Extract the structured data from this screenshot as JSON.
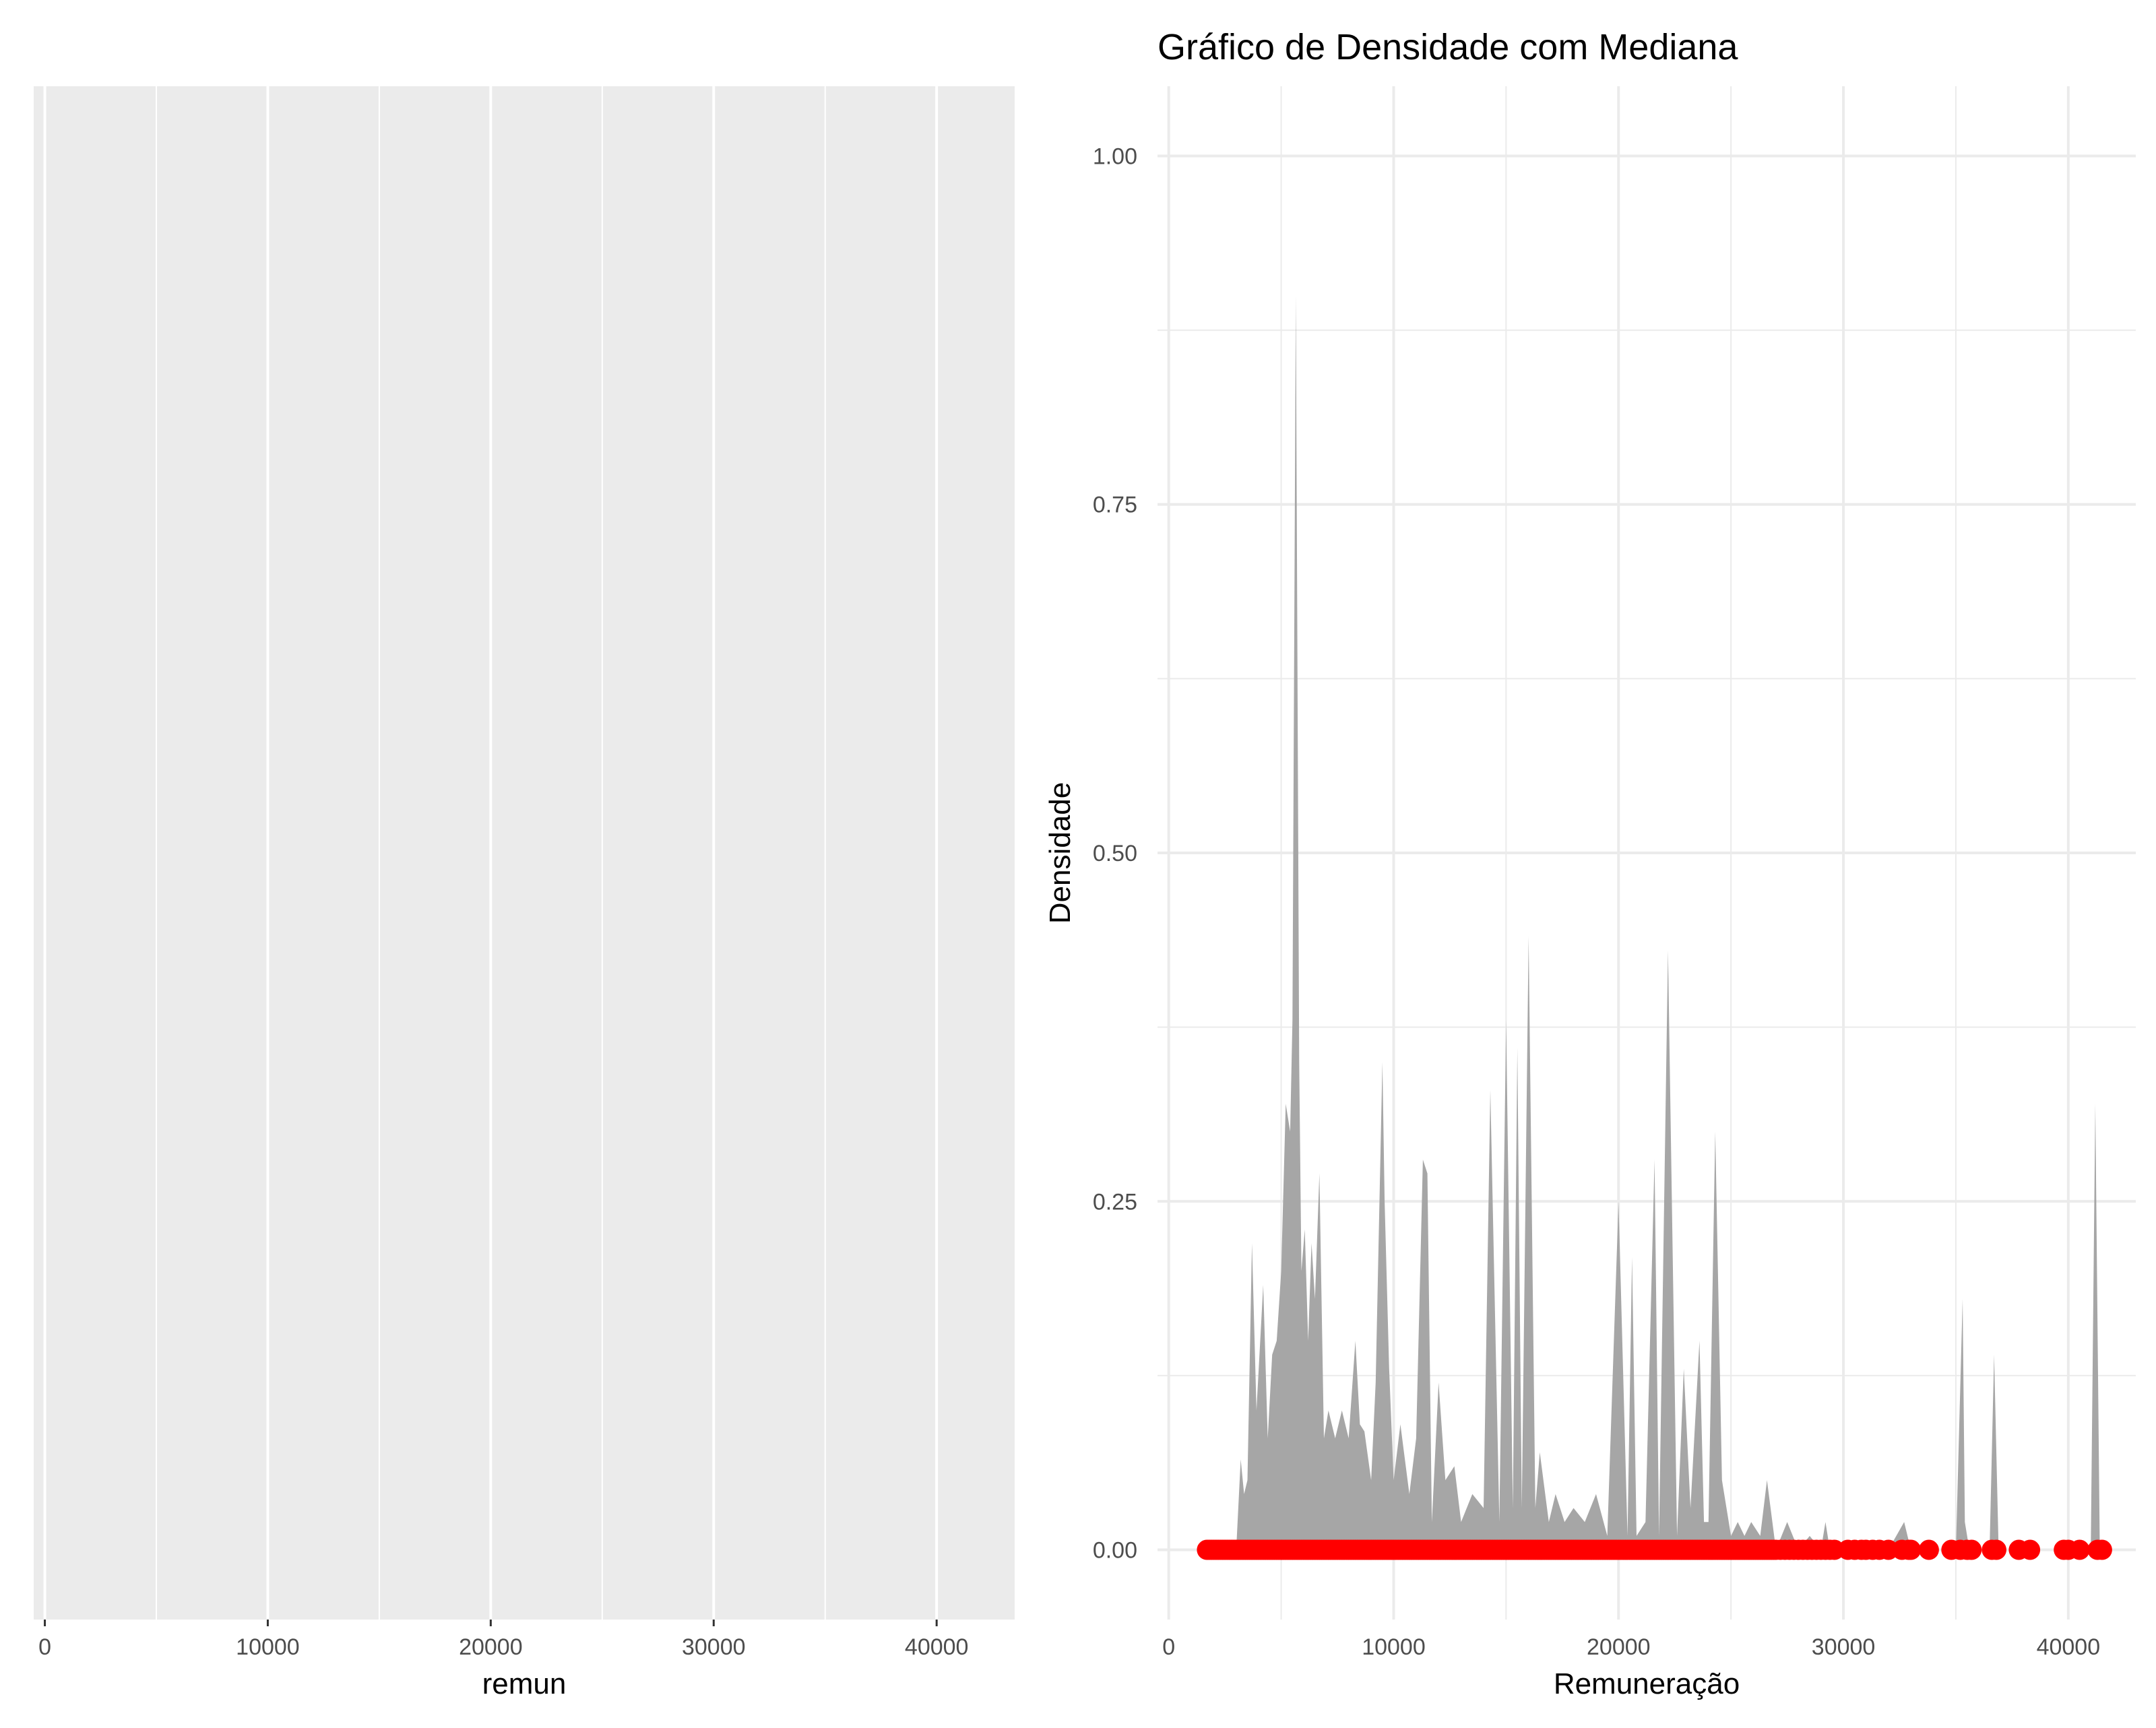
{
  "chart_data": [
    {
      "type": "area",
      "panel": "left",
      "title": "",
      "xlabel": "remun",
      "ylabel": "",
      "xlim": [
        -500,
        43500
      ],
      "x_ticks": [
        0,
        10000,
        20000,
        30000,
        40000
      ],
      "x_tick_labels": [
        "0",
        "10000",
        "20000",
        "30000",
        "40000"
      ],
      "y_ticks": [],
      "grid": true,
      "background": "#EBEBEB",
      "series": []
    },
    {
      "type": "area",
      "panel": "right",
      "title": "Gráfico de Densidade com Mediana",
      "xlabel": "Remuneração",
      "ylabel": "Densidade",
      "xlim": [
        -500,
        43000
      ],
      "ylim": [
        -0.05,
        1.05
      ],
      "x_ticks": [
        0,
        10000,
        20000,
        30000,
        40000
      ],
      "x_tick_labels": [
        "0",
        "10000",
        "20000",
        "30000",
        "40000"
      ],
      "y_ticks": [
        0,
        0.25,
        0.5,
        0.75,
        1.0
      ],
      "y_tick_labels": [
        "0.00",
        "0.25",
        "0.50",
        "0.75",
        "1.00"
      ],
      "grid": true,
      "series": [
        {
          "kind": "density-area",
          "color": "#A6A6A6",
          "x": [
            1700,
            2500,
            3000,
            3200,
            3350,
            3500,
            3700,
            3900,
            4200,
            4400,
            4600,
            4800,
            5000,
            5200,
            5400,
            5500,
            5650,
            5800,
            5900,
            6050,
            6200,
            6350,
            6500,
            6700,
            6900,
            7100,
            7400,
            7700,
            8000,
            8300,
            8500,
            8700,
            9000,
            9200,
            9500,
            9600,
            9800,
            10000,
            10300,
            10700,
            11000,
            11300,
            11500,
            11700,
            12000,
            12300,
            12700,
            13000,
            13500,
            14000,
            14300,
            14700,
            15000,
            15300,
            15500,
            15700,
            16000,
            16300,
            16500,
            16900,
            17200,
            17600,
            18000,
            18500,
            19000,
            19500,
            20000,
            20400,
            20600,
            20800,
            21200,
            21600,
            21800,
            22200,
            22600,
            22900,
            23200,
            23600,
            23800,
            24000,
            24300,
            24600,
            24800,
            25000,
            25300,
            25600,
            25900,
            26300,
            26600,
            27000,
            27500,
            28000,
            28500,
            29000,
            29200,
            29400,
            30000,
            30500,
            31000,
            32000,
            32700,
            33000,
            34000,
            35000,
            35300,
            35400,
            35600,
            36000,
            36500,
            36700,
            36900,
            37500,
            38000,
            39000,
            40000,
            41000,
            41200,
            41400
          ],
          "y": [
            0,
            0,
            0,
            0.065,
            0.04,
            0.05,
            0.22,
            0.1,
            0.19,
            0.08,
            0.14,
            0.15,
            0.2,
            0.32,
            0.3,
            0.38,
            0.9,
            0.35,
            0.2,
            0.23,
            0.15,
            0.22,
            0.18,
            0.27,
            0.08,
            0.1,
            0.08,
            0.1,
            0.08,
            0.15,
            0.09,
            0.085,
            0.05,
            0.12,
            0.35,
            0.25,
            0.13,
            0.05,
            0.09,
            0.04,
            0.08,
            0.28,
            0.27,
            0.02,
            0.12,
            0.05,
            0.06,
            0.02,
            0.04,
            0.03,
            0.33,
            0.02,
            0.38,
            0.03,
            0.36,
            0.03,
            0.44,
            0.03,
            0.07,
            0.02,
            0.04,
            0.02,
            0.03,
            0.02,
            0.04,
            0.01,
            0.25,
            0.01,
            0.21,
            0.01,
            0.02,
            0.28,
            0.01,
            0.43,
            0.01,
            0.13,
            0.03,
            0.15,
            0.02,
            0.02,
            0.3,
            0.05,
            0.03,
            0.01,
            0.02,
            0.01,
            0.02,
            0.01,
            0.05,
            0,
            0.02,
            0,
            0.01,
            0,
            0.02,
            0,
            0,
            0,
            0,
            0,
            0.02,
            0,
            0,
            0,
            0.18,
            0.02,
            0,
            0,
            0,
            0.14,
            0,
            0,
            0,
            0,
            0,
            0,
            0.32,
            0
          ]
        },
        {
          "kind": "points",
          "color": "#FF0000",
          "y_value": 0,
          "x": [
            1700,
            1800,
            1900,
            2000,
            2100,
            2200,
            2300,
            2400,
            2500,
            2600,
            2700,
            2800,
            2900,
            3000,
            3100,
            3200,
            3300,
            3400,
            3500,
            3600,
            3700,
            3800,
            3900,
            4000,
            4100,
            4200,
            4300,
            4400,
            4500,
            4600,
            4700,
            4800,
            4900,
            5000,
            5100,
            5200,
            5300,
            5400,
            5500,
            5600,
            5700,
            5800,
            5900,
            6000,
            6100,
            6200,
            6300,
            6400,
            6500,
            6600,
            6700,
            6800,
            6900,
            7000,
            7100,
            7200,
            7300,
            7400,
            7500,
            7600,
            7700,
            7800,
            7900,
            8000,
            8100,
            8200,
            8300,
            8400,
            8500,
            8600,
            8700,
            8800,
            8900,
            9000,
            9100,
            9200,
            9300,
            9400,
            9500,
            9600,
            9700,
            9800,
            9900,
            10000,
            10100,
            10200,
            10300,
            10400,
            10500,
            10600,
            10700,
            10800,
            10900,
            11000,
            11100,
            11200,
            11300,
            11400,
            11500,
            11600,
            11700,
            11800,
            11900,
            12000,
            12100,
            12200,
            12300,
            12400,
            12500,
            12600,
            12700,
            12800,
            12900,
            13000,
            13100,
            13200,
            13300,
            13400,
            13500,
            13600,
            13700,
            13800,
            13900,
            14000,
            14100,
            14200,
            14300,
            14400,
            14500,
            14600,
            14700,
            14800,
            14900,
            15000,
            15100,
            15200,
            15300,
            15400,
            15500,
            15600,
            15700,
            15800,
            15900,
            16000,
            16100,
            16200,
            16300,
            16400,
            16500,
            16600,
            16700,
            16800,
            16900,
            17000,
            17100,
            17200,
            17300,
            17400,
            17500,
            17600,
            17700,
            17800,
            17900,
            18000,
            18100,
            18200,
            18300,
            18400,
            18500,
            18600,
            18700,
            18800,
            18900,
            19000,
            19100,
            19200,
            19300,
            19400,
            19500,
            19600,
            19700,
            19800,
            19900,
            20000,
            20100,
            20200,
            20300,
            20400,
            20500,
            20600,
            20700,
            20800,
            20900,
            21000,
            21100,
            21200,
            21300,
            21400,
            21500,
            21600,
            21700,
            21800,
            21900,
            22000,
            22100,
            22200,
            22300,
            22400,
            22500,
            22600,
            22700,
            22800,
            22900,
            23000,
            23100,
            23200,
            23300,
            23400,
            23500,
            23600,
            23700,
            23800,
            23900,
            24000,
            24100,
            24200,
            24300,
            24400,
            24500,
            24600,
            24700,
            24800,
            24900,
            25000,
            25100,
            25200,
            25300,
            25400,
            25500,
            25600,
            25700,
            25800,
            25900,
            26000,
            26100,
            26200,
            26300,
            26400,
            26500,
            26600,
            26700,
            26800,
            26900,
            27000,
            27200,
            27400,
            27600,
            27800,
            28000,
            28200,
            28400,
            28600,
            28800,
            29000,
            29200,
            29400,
            29600,
            30200,
            30500,
            30800,
            31000,
            31300,
            31600,
            32000,
            32600,
            32900,
            33000,
            33800,
            34800,
            35200,
            35500,
            35700,
            36600,
            36800,
            37800,
            38300,
            39800,
            40000,
            40500,
            41300,
            41500
          ]
        }
      ]
    }
  ]
}
